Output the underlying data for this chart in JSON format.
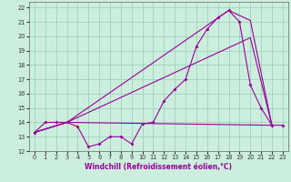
{
  "xlabel": "Windchill (Refroidissement éolien,°C)",
  "bg_color": "#cceedd",
  "line_color": "#990099",
  "grid_color": "#99ccbb",
  "xlim": [
    -0.5,
    23.5
  ],
  "ylim": [
    12,
    22.4
  ],
  "xticks": [
    0,
    1,
    2,
    3,
    4,
    5,
    6,
    7,
    8,
    9,
    10,
    11,
    12,
    13,
    14,
    15,
    16,
    17,
    18,
    19,
    20,
    21,
    22,
    23
  ],
  "yticks": [
    12,
    13,
    14,
    15,
    16,
    17,
    18,
    19,
    20,
    21,
    22
  ],
  "line1_x": [
    0,
    1,
    2,
    3,
    4,
    5,
    6,
    7,
    8,
    9,
    10,
    11,
    12,
    13,
    14,
    15,
    16,
    17,
    18,
    19,
    20,
    21,
    22,
    23
  ],
  "line1_y": [
    13.3,
    14.0,
    14.0,
    14.0,
    13.7,
    12.3,
    12.5,
    13.0,
    13.0,
    12.5,
    13.9,
    14.0,
    15.5,
    16.3,
    17.0,
    19.3,
    20.5,
    21.3,
    21.8,
    21.0,
    16.6,
    15.0,
    13.8,
    13.8
  ],
  "line2_x": [
    0,
    3,
    20,
    22
  ],
  "line2_y": [
    13.3,
    14.0,
    19.9,
    13.8
  ],
  "line3_x": [
    0,
    3,
    22
  ],
  "line3_y": [
    13.3,
    14.0,
    13.8
  ],
  "line4_x": [
    0,
    3,
    18,
    20,
    22
  ],
  "line4_y": [
    13.3,
    14.0,
    21.8,
    21.1,
    13.8
  ],
  "xlabel_fontsize": 5.5,
  "tick_fontsize": 4.8
}
